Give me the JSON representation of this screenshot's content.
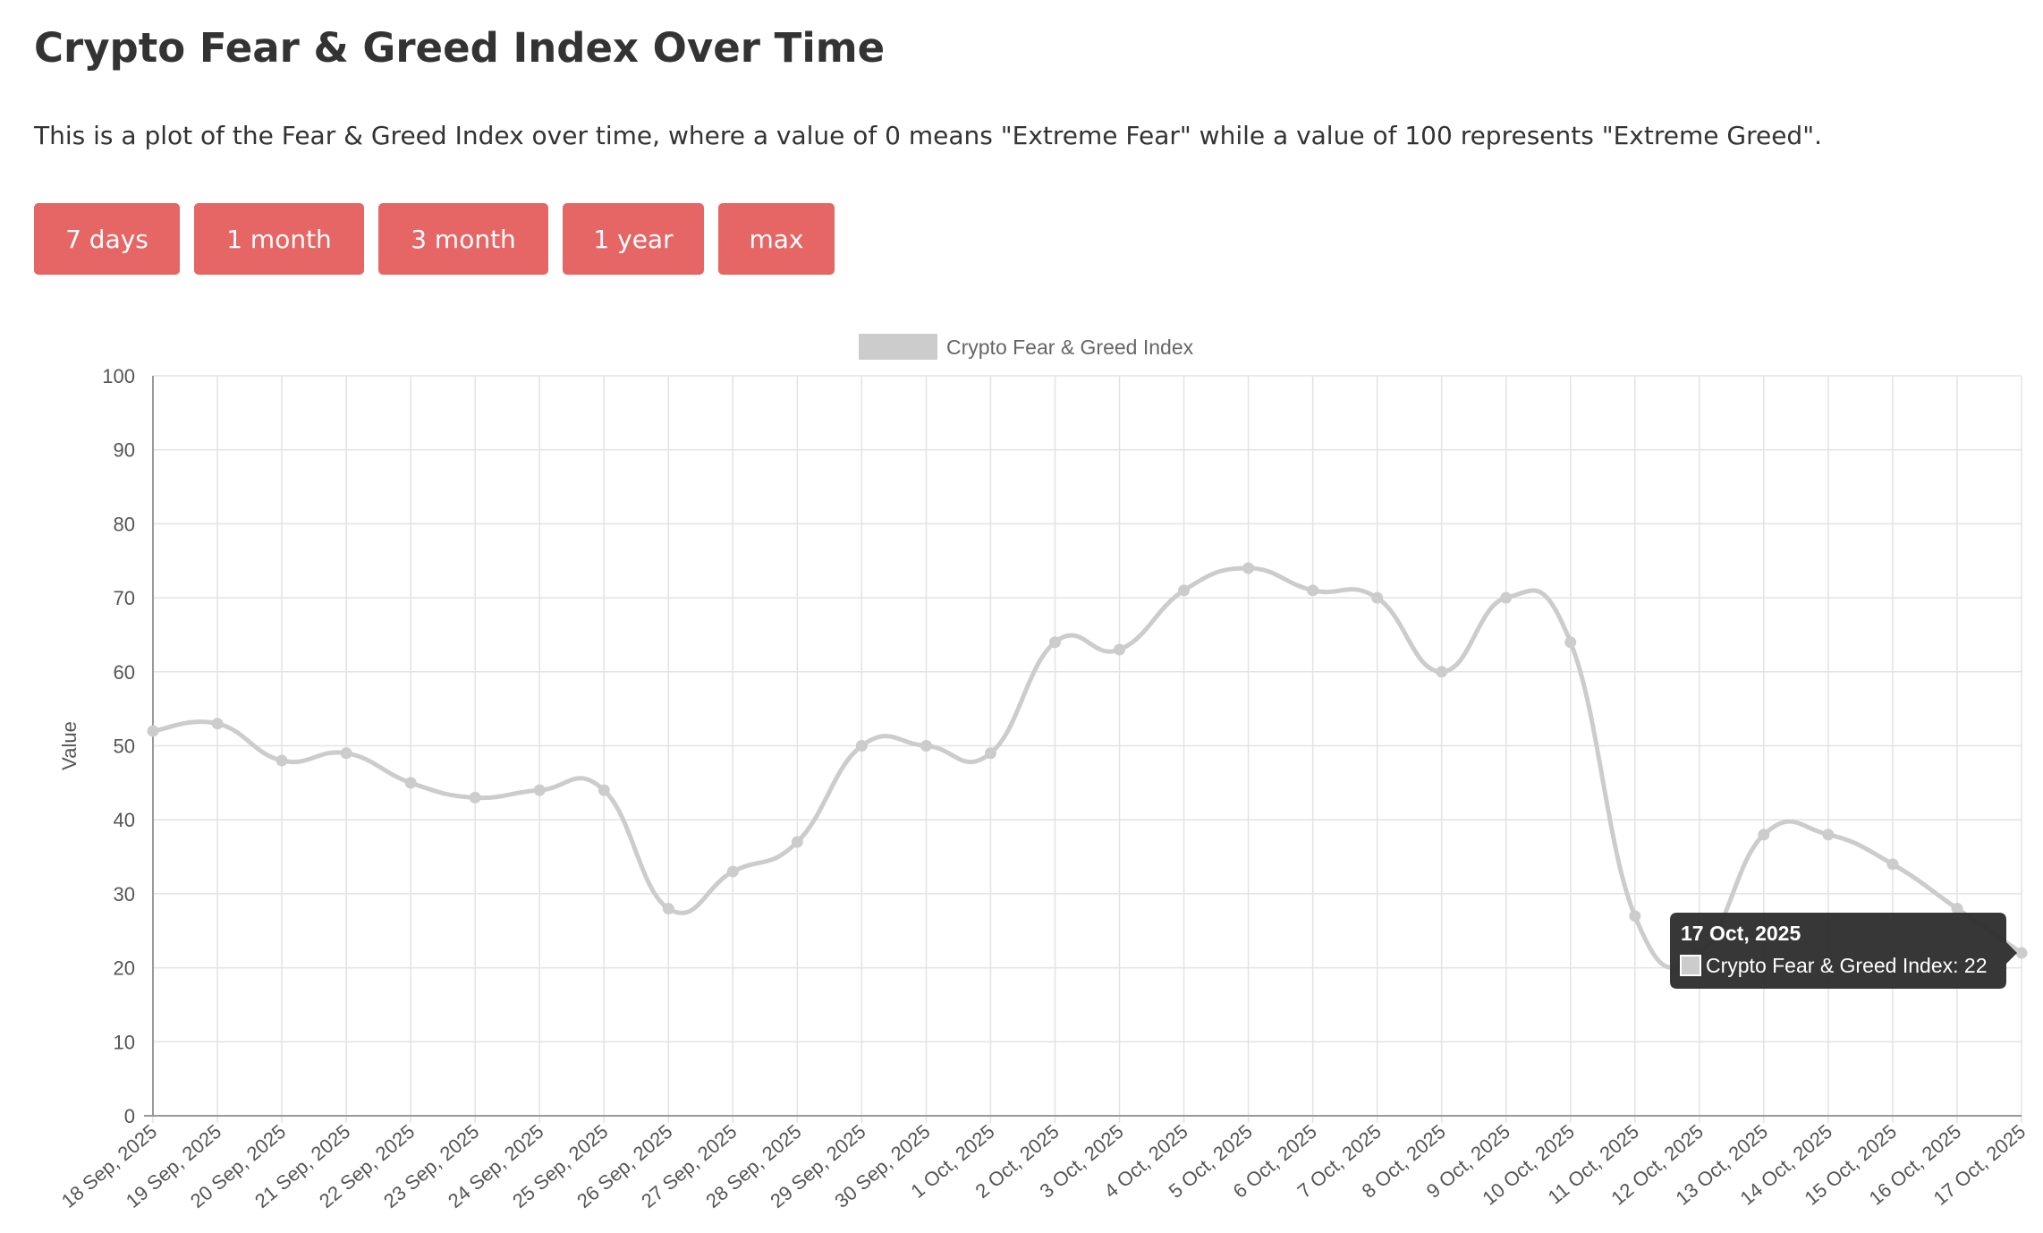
{
  "page": {
    "title": "Crypto Fear & Greed Index Over Time",
    "description": "This is a plot of the Fear & Greed Index over time, where a value of 0 means \"Extreme Fear\" while a value of 100 represents \"Extreme Greed\"."
  },
  "range_buttons": [
    {
      "label": "7 days"
    },
    {
      "label": "1 month"
    },
    {
      "label": "3 month"
    },
    {
      "label": "1 year"
    },
    {
      "label": "max"
    }
  ],
  "colors": {
    "button": "#e56664",
    "series_line": "#cccccc",
    "grid": "#e3e3e3",
    "axis": "#999999",
    "tick_text": "#555555",
    "tooltip_bg": "#2c2c2c",
    "tooltip_text": "#ffffff"
  },
  "chart_data": {
    "type": "line",
    "legend": {
      "position": "top",
      "label": "Crypto Fear & Greed Index"
    },
    "ylabel": "Value",
    "xlabel": "",
    "ylim": [
      0,
      100
    ],
    "yticks": [
      0,
      10,
      20,
      30,
      40,
      50,
      60,
      70,
      80,
      90,
      100
    ],
    "grid": true,
    "categories": [
      "18 Sep, 2025",
      "19 Sep, 2025",
      "20 Sep, 2025",
      "21 Sep, 2025",
      "22 Sep, 2025",
      "23 Sep, 2025",
      "24 Sep, 2025",
      "25 Sep, 2025",
      "26 Sep, 2025",
      "27 Sep, 2025",
      "28 Sep, 2025",
      "29 Sep, 2025",
      "30 Sep, 2025",
      "1 Oct, 2025",
      "2 Oct, 2025",
      "3 Oct, 2025",
      "4 Oct, 2025",
      "5 Oct, 2025",
      "6 Oct, 2025",
      "7 Oct, 2025",
      "8 Oct, 2025",
      "9 Oct, 2025",
      "10 Oct, 2025",
      "11 Oct, 2025",
      "12 Oct, 2025",
      "13 Oct, 2025",
      "14 Oct, 2025",
      "15 Oct, 2025",
      "16 Oct, 2025",
      "17 Oct, 2025"
    ],
    "series": [
      {
        "name": "Crypto Fear & Greed Index",
        "values": [
          52,
          53,
          48,
          49,
          45,
          43,
          44,
          44,
          28,
          33,
          37,
          50,
          50,
          49,
          64,
          63,
          71,
          74,
          71,
          70,
          60,
          70,
          64,
          27,
          22,
          38,
          38,
          34,
          28,
          22
        ]
      }
    ],
    "tooltip": {
      "title": "17 Oct, 2025",
      "series_label": "Crypto Fear & Greed Index",
      "value": "22",
      "text": "Crypto Fear & Greed Index: 22"
    }
  }
}
